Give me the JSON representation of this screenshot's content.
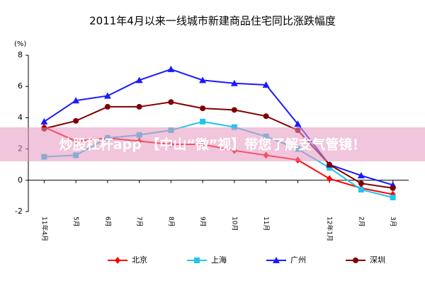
{
  "chart_data": {
    "type": "line",
    "title": "2011年4月以来一线城市新建商品住宅同比涨跌幅度",
    "y_label": "(%)",
    "categories": [
      "11年4月",
      "5月",
      "6月",
      "7月",
      "8月",
      "9月",
      "10月",
      "11月",
      null,
      "12年1月",
      "2月",
      "3月"
    ],
    "series": [
      {
        "name": "北京",
        "color": "#ff0000",
        "marker": "diamond",
        "values": [
          3.4,
          2.5,
          2.7,
          2.5,
          2.3,
          2.3,
          1.9,
          1.6,
          1.3,
          0.1,
          -0.5,
          -0.9
        ]
      },
      {
        "name": "上海",
        "color": "#22c4ee",
        "marker": "square",
        "values": [
          1.5,
          1.6,
          2.7,
          2.9,
          3.2,
          3.75,
          3.4,
          2.8,
          2.0,
          0.8,
          -0.6,
          -1.1
        ]
      },
      {
        "name": "广州",
        "color": "#1a1aff",
        "marker": "triangle",
        "values": [
          3.75,
          5.1,
          5.4,
          6.4,
          7.1,
          6.4,
          6.2,
          6.1,
          3.6,
          1.0,
          0.3,
          -0.3
        ]
      },
      {
        "name": "深圳",
        "color": "#800000",
        "marker": "circle",
        "values": [
          3.3,
          3.8,
          4.7,
          4.7,
          5.0,
          4.6,
          4.5,
          4.1,
          3.2,
          1.0,
          -0.2,
          -0.5
        ]
      }
    ],
    "ylim": [
      -2,
      8
    ],
    "yticks": [
      -2,
      0,
      2,
      4,
      6,
      8
    ],
    "grid": false
  },
  "banner": {
    "text": "炒股杠杆app 【中山“微”视】带您了解支气管镜！"
  }
}
